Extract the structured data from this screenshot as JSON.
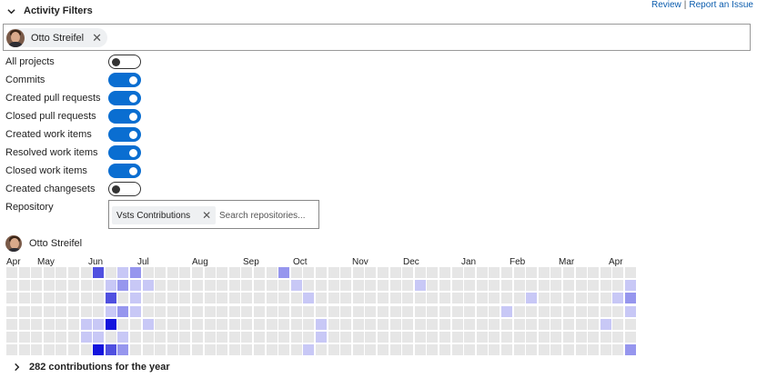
{
  "header": {
    "title": "Activity Filters",
    "expand_icon": "chevron-down-icon"
  },
  "links": {
    "review": "Review",
    "separator": "|",
    "report": "Report an Issue"
  },
  "user_filter": {
    "name": "Otto Streifel",
    "remove": "✕"
  },
  "filters": [
    {
      "label": "All projects",
      "on": false
    },
    {
      "label": "Commits",
      "on": true
    },
    {
      "label": "Created pull requests",
      "on": true
    },
    {
      "label": "Closed pull requests",
      "on": true
    },
    {
      "label": "Created work items",
      "on": true
    },
    {
      "label": "Resolved work items",
      "on": true
    },
    {
      "label": "Closed work items",
      "on": true
    },
    {
      "label": "Created changesets",
      "on": false
    }
  ],
  "repository": {
    "label": "Repository",
    "chip": "Vsts Contributions",
    "remove": "✕",
    "placeholder": "Search repositories..."
  },
  "contributor": {
    "name": "Otto Streifel"
  },
  "months": [
    "Apr",
    "May",
    "Jun",
    "Jul",
    "Aug",
    "Sep",
    "Oct",
    "Nov",
    "Dec",
    "Jan",
    "Feb",
    "Mar",
    "Apr"
  ],
  "colors": {
    "toggle_on": "#0a6ed1",
    "empty": "#e6e6e6",
    "levels": [
      "#e6e6e6",
      "#c8c8f6",
      "#9696ee",
      "#5050e0",
      "#1414dd"
    ]
  },
  "heatmap": {
    "rows": [
      "000000030120000000000020000000000000000000000000000",
      "000000001211000000000001000000000100000000000000001",
      "000000003010000000000000100000000000000000100000012",
      "000000001210000000000000000000000000000010000000001",
      "000000114001000000000000010000000000000000000000100",
      "000000110100000000000000010000000000000000000000000",
      "000000043200000000000000100000000000000000000000002"
    ]
  },
  "footer": {
    "text": "282 contributions for the year",
    "expand_icon": "chevron-right-icon"
  }
}
